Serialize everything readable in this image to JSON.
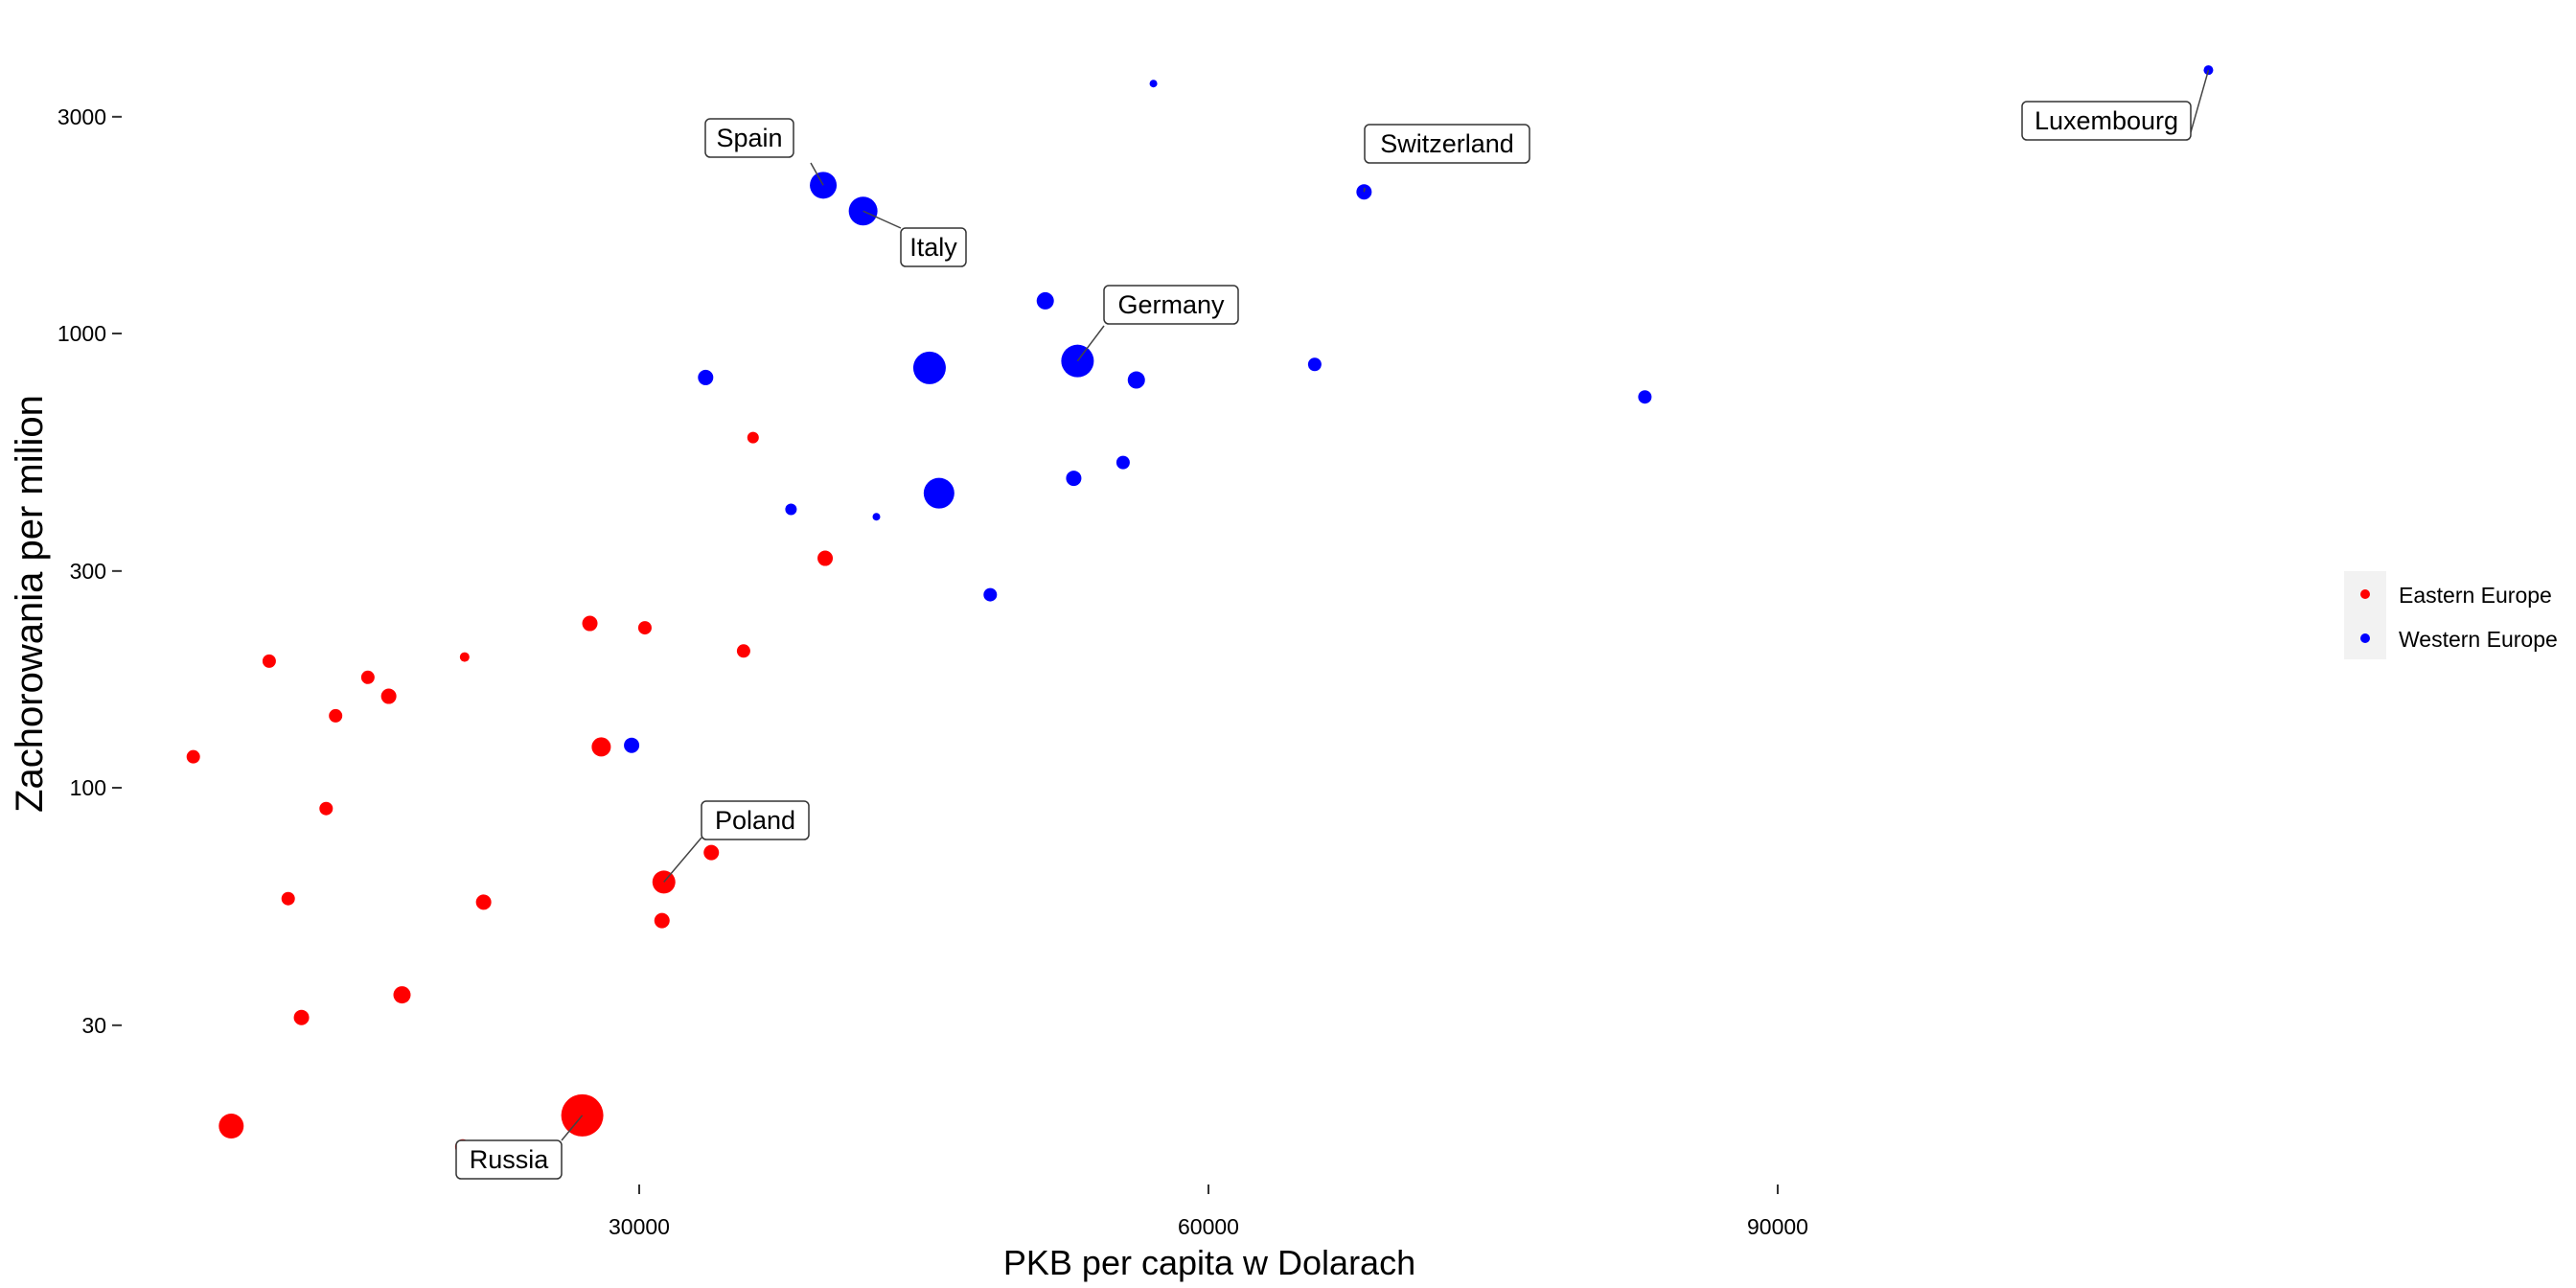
{
  "chart_data": {
    "type": "scatter",
    "title": "",
    "xlabel": "PKB per capita w Dolarach",
    "ylabel": "Zachorowania per milion",
    "x_scale": "linear",
    "y_scale": "log10",
    "xlim": [
      2000,
      117000
    ],
    "ylim": [
      9,
      4100
    ],
    "x_ticks": [
      30000,
      60000,
      90000
    ],
    "x_tick_labels": [
      "30000",
      "60000",
      "90000"
    ],
    "y_ticks": [
      30,
      100,
      300,
      1000,
      3000
    ],
    "y_tick_labels": [
      "30",
      "100",
      "300",
      "1000",
      "3000"
    ],
    "grid": false,
    "legend_position": "right",
    "colors": {
      "Eastern Europe": "#ff0000",
      "Western Europe": "#0000ff"
    },
    "series": [
      {
        "name": "Eastern Europe",
        "points": [
          {
            "x": 8500,
            "y": 18,
            "r": 13
          },
          {
            "x": 27000,
            "y": 19,
            "r": 22,
            "label": "Russia"
          },
          {
            "x": 20700,
            "y": 16.2,
            "r": 8
          },
          {
            "x": 6500,
            "y": 117,
            "r": 7
          },
          {
            "x": 12200,
            "y": 31.2,
            "r": 8
          },
          {
            "x": 11500,
            "y": 57,
            "r": 7
          },
          {
            "x": 10500,
            "y": 190,
            "r": 7
          },
          {
            "x": 13500,
            "y": 90,
            "r": 7
          },
          {
            "x": 14000,
            "y": 144,
            "r": 7
          },
          {
            "x": 15700,
            "y": 175,
            "r": 7
          },
          {
            "x": 16800,
            "y": 159,
            "r": 8
          },
          {
            "x": 17500,
            "y": 35,
            "r": 9
          },
          {
            "x": 20800,
            "y": 194,
            "r": 5
          },
          {
            "x": 21800,
            "y": 56,
            "r": 8
          },
          {
            "x": 27400,
            "y": 230,
            "r": 8
          },
          {
            "x": 28000,
            "y": 123,
            "r": 10
          },
          {
            "x": 30300,
            "y": 225,
            "r": 7
          },
          {
            "x": 31300,
            "y": 62,
            "r": 12,
            "label": "Poland"
          },
          {
            "x": 31200,
            "y": 51,
            "r": 8
          },
          {
            "x": 33800,
            "y": 72,
            "r": 8
          },
          {
            "x": 35500,
            "y": 200,
            "r": 7
          },
          {
            "x": 36000,
            "y": 590,
            "r": 6
          },
          {
            "x": 39800,
            "y": 320,
            "r": 8
          }
        ]
      },
      {
        "name": "Western Europe",
        "points": [
          {
            "x": 29600,
            "y": 124,
            "r": 8
          },
          {
            "x": 33500,
            "y": 800,
            "r": 8
          },
          {
            "x": 38000,
            "y": 410,
            "r": 6
          },
          {
            "x": 42500,
            "y": 395,
            "r": 4
          },
          {
            "x": 39700,
            "y": 2120,
            "r": 14,
            "label": "Spain"
          },
          {
            "x": 41800,
            "y": 1860,
            "r": 15,
            "label": "Italy"
          },
          {
            "x": 45300,
            "y": 840,
            "r": 17
          },
          {
            "x": 45800,
            "y": 445,
            "r": 16
          },
          {
            "x": 48500,
            "y": 266,
            "r": 7
          },
          {
            "x": 51400,
            "y": 1180,
            "r": 9
          },
          {
            "x": 52900,
            "y": 480,
            "r": 8
          },
          {
            "x": 53100,
            "y": 870,
            "r": 17,
            "label": "Germany"
          },
          {
            "x": 55500,
            "y": 520,
            "r": 7
          },
          {
            "x": 56200,
            "y": 790,
            "r": 9
          },
          {
            "x": 57100,
            "y": 3550,
            "r": 4
          },
          {
            "x": 65600,
            "y": 855,
            "r": 7
          },
          {
            "x": 68200,
            "y": 2050,
            "r": 8,
            "label": "Switzerland"
          },
          {
            "x": 83000,
            "y": 725,
            "r": 7
          },
          {
            "x": 112700,
            "y": 3800,
            "r": 5,
            "label": "Luxembourg"
          }
        ]
      }
    ],
    "annotations": [
      {
        "text": "Spain",
        "x": 39700,
        "y": 2120
      },
      {
        "text": "Italy",
        "x": 41800,
        "y": 1860
      },
      {
        "text": "Switzerland",
        "x": 68200,
        "y": 2050
      },
      {
        "text": "Luxembourg",
        "x": 112700,
        "y": 3800
      },
      {
        "text": "Germany",
        "x": 53100,
        "y": 870
      },
      {
        "text": "Poland",
        "x": 31300,
        "y": 62
      },
      {
        "text": "Russia",
        "x": 27000,
        "y": 19
      }
    ]
  }
}
